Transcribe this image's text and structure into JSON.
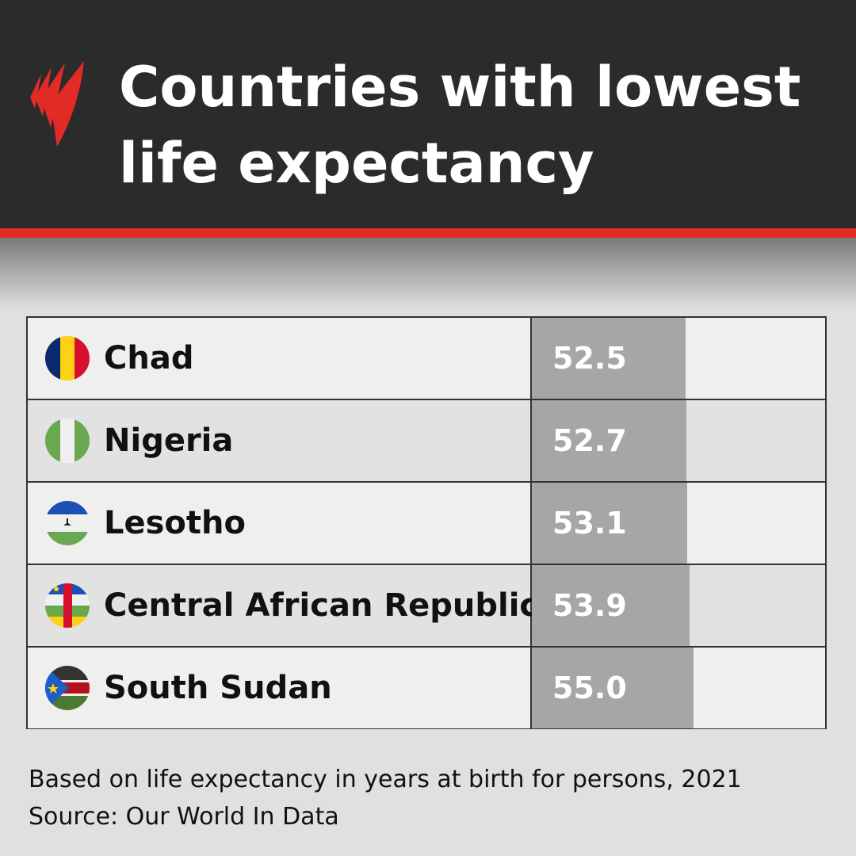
{
  "header": {
    "title": "Countries with lowest life expectancy",
    "logo": "SBS"
  },
  "colors": {
    "header_bg": "#2b2b2b",
    "accent": "#e32b25",
    "bar": "#a6a6a6",
    "row_light": "#efefef",
    "row_dark": "#e2e2e2"
  },
  "chart_data": {
    "type": "table",
    "xlim": [
      0,
      100
    ],
    "categories": [
      "Chad",
      "Nigeria",
      "Lesotho",
      "Central African Republic",
      "South Sudan"
    ],
    "values": [
      52.5,
      52.7,
      53.1,
      53.9,
      55.0
    ],
    "labels": [
      "52.5",
      "52.7",
      "53.1",
      "53.9",
      "55.0"
    ],
    "flags": [
      "chad-flag",
      "nigeria-flag",
      "lesotho-flag",
      "central-african-republic-flag",
      "south-sudan-flag"
    ]
  },
  "footer": {
    "note": "Based on life expectancy in years at birth for persons, 2021",
    "source": "Source: Our World In Data"
  }
}
